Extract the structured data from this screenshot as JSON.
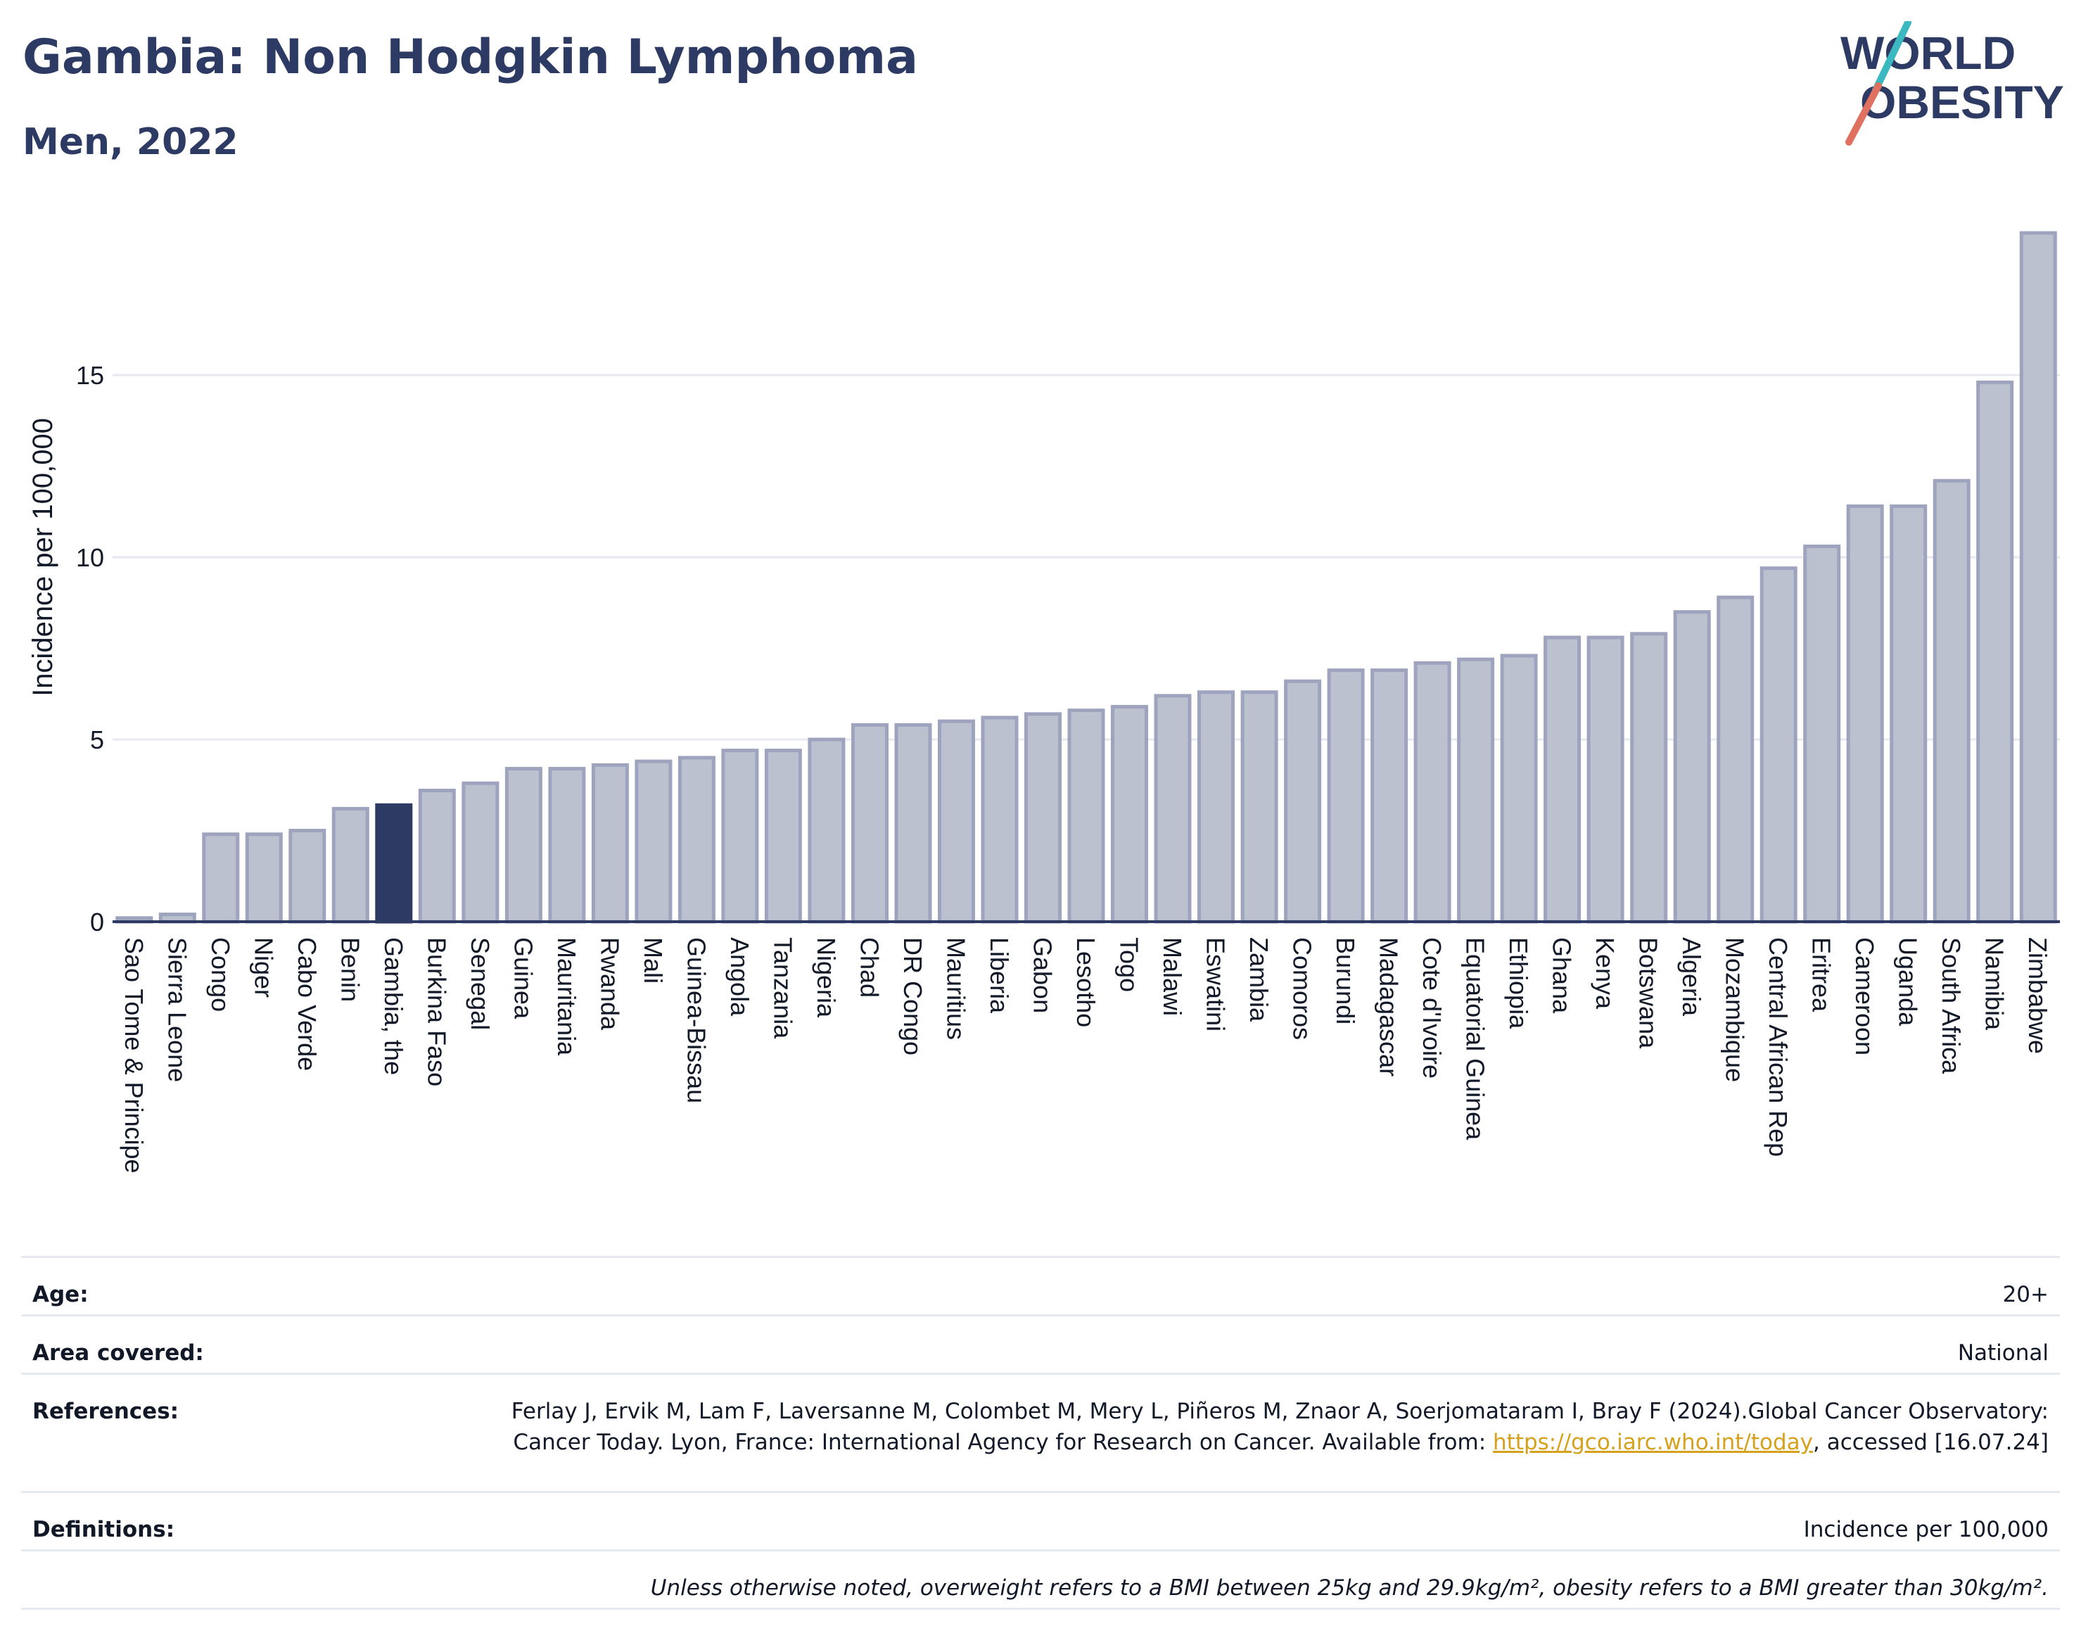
{
  "header": {
    "title": "Gambia: Non Hodgkin Lymphoma",
    "subtitle": "Men, 2022"
  },
  "logo": {
    "line1": "WORLD",
    "line2": "OBESITY",
    "accent_teal": "#3cb8c0",
    "accent_coral": "#e0705f",
    "text_color": "#2d3a63"
  },
  "colors": {
    "bar_default": "#bcc1d0",
    "bar_default_stroke": "#9ea4bd",
    "bar_highlight": "#2d3a63",
    "axis": "#2d3a63",
    "grid": "#e6e9ef"
  },
  "chart_data": {
    "type": "bar",
    "title": "Gambia: Non Hodgkin Lymphoma",
    "subtitle": "Men, 2022",
    "xlabel": "",
    "ylabel": "Incidence per 100,000",
    "ylim": [
      0,
      19.5
    ],
    "yticks": [
      0,
      5,
      10,
      15
    ],
    "grid": true,
    "highlight": "Gambia, the",
    "categories": [
      "Sao Tome & Principe",
      "Sierra Leone",
      "Congo",
      "Niger",
      "Cabo Verde",
      "Benin",
      "Gambia, the",
      "Burkina Faso",
      "Senegal",
      "Guinea",
      "Mauritania",
      "Rwanda",
      "Mali",
      "Guinea-Bissau",
      "Angola",
      "Tanzania",
      "Nigeria",
      "Chad",
      "DR Congo",
      "Mauritius",
      "Liberia",
      "Gabon",
      "Lesotho",
      "Togo",
      "Malawi",
      "Eswatini",
      "Zambia",
      "Comoros",
      "Burundi",
      "Madagascar",
      "Cote d'Ivoire",
      "Equatorial Guinea",
      "Ethiopia",
      "Ghana",
      "Kenya",
      "Botswana",
      "Algeria",
      "Mozambique",
      "Central African Rep",
      "Eritrea",
      "Cameroon",
      "Uganda",
      "South Africa",
      "Namibia",
      "Zimbabwe"
    ],
    "values": [
      0.1,
      0.2,
      2.4,
      2.4,
      2.5,
      3.1,
      3.2,
      3.6,
      3.8,
      4.2,
      4.2,
      4.3,
      4.4,
      4.5,
      4.7,
      4.7,
      5.0,
      5.4,
      5.4,
      5.5,
      5.6,
      5.7,
      5.8,
      5.9,
      6.2,
      6.3,
      6.3,
      6.6,
      6.9,
      6.9,
      7.1,
      7.2,
      7.3,
      7.8,
      7.8,
      7.9,
      8.5,
      8.9,
      9.7,
      10.3,
      11.4,
      11.4,
      12.1,
      14.8,
      18.9
    ]
  },
  "meta": {
    "age_label": "Age:",
    "age_value": "20+",
    "area_label": "Area covered:",
    "area_value": "National",
    "references_label": "References:",
    "references_text_1": "Ferlay J, Ervik M, Lam F, Laversanne M, Colombet M, Mery L, Piñeros M, Znaor A, Soerjomataram I, Bray F (2024).Global Cancer Observatory: Cancer Today. Lyon, France: International Agency for Research on Cancer. Available from: ",
    "references_link": "https://gco.iarc.who.int/today",
    "references_text_2": ", accessed [16.07.24]",
    "definitions_label": "Definitions:",
    "definitions_value": "Incidence per 100,000",
    "note": "Unless otherwise noted, overweight refers to a BMI between 25kg and 29.9kg/m², obesity refers to a BMI greater than 30kg/m²."
  }
}
